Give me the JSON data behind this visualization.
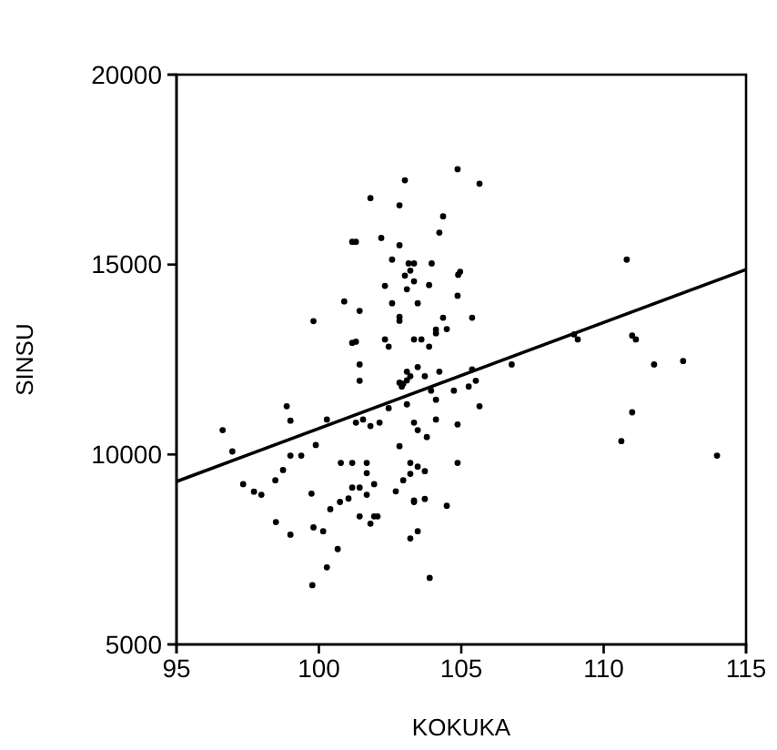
{
  "chart_data": {
    "type": "scatter",
    "xlabel": "KOKUKA",
    "ylabel": "SINSU",
    "xlim": [
      95,
      115
    ],
    "ylim": [
      5000,
      20000
    ],
    "xticks": [
      95,
      100,
      105,
      110,
      115
    ],
    "yticks": [
      5000,
      10000,
      15000,
      20000
    ],
    "grid": false,
    "marker": "circle",
    "series": [
      {
        "color": "#000000",
        "x": [
          104.87,
          103.02,
          105.64,
          101.81,
          102.83,
          104.36,
          104.23,
          101.17,
          101.3,
          102.19,
          102.83,
          102.57,
          103.15,
          103.34,
          103.96,
          104.96,
          104.89,
          103.21,
          103.02,
          103.34,
          103.87,
          102.32,
          103.09,
          104.87,
          100.89,
          102.57,
          103.47,
          101.43,
          102.83,
          102.83,
          99.81,
          104.36,
          105.38,
          104.11,
          104.49,
          104.11,
          101.17,
          101.3,
          102.32,
          102.45,
          103.34,
          103.6,
          103.87,
          101.43,
          101.43,
          103.47,
          103.09,
          103.21,
          103.72,
          104.23,
          102.83,
          102.96,
          103.09,
          102.91,
          103.94,
          104.74,
          105.38,
          105.51,
          105.26,
          106.77,
          108.96,
          109.09,
          111.0,
          111.13,
          110.81,
          111.77,
          112.79,
          111.0,
          110.62,
          113.98,
          104.11,
          103.09,
          102.45,
          105.64,
          98.87,
          99.0,
          100.28,
          101.3,
          101.55,
          101.81,
          102.13,
          103.34,
          103.47,
          104.11,
          104.87,
          103.79,
          96.62,
          96.96,
          99.89,
          99.0,
          99.38,
          98.74,
          98.47,
          97.34,
          97.72,
          97.98,
          99.74,
          98.49,
          99.0,
          99.81,
          100.15,
          100.66,
          100.28,
          99.77,
          103.89,
          100.4,
          100.77,
          101.17,
          101.68,
          101.68,
          101.17,
          101.43,
          101.94,
          101.68,
          101.04,
          100.74,
          101.43,
          101.94,
          102.06,
          101.81,
          102.83,
          102.7,
          102.96,
          103.21,
          103.47,
          103.72,
          103.21,
          103.34,
          103.34,
          103.72,
          103.47,
          103.21,
          104.49,
          104.87
        ],
        "values": [
          17510,
          17220,
          17130,
          16750,
          16560,
          16270,
          15840,
          15600,
          15600,
          15700,
          15510,
          15130,
          15030,
          15030,
          15030,
          14810,
          14730,
          14840,
          14710,
          14560,
          14460,
          14440,
          14350,
          14180,
          14030,
          13980,
          13980,
          13780,
          13620,
          13520,
          13510,
          13600,
          13600,
          13290,
          13300,
          13190,
          12940,
          12970,
          13030,
          12840,
          13030,
          13030,
          12840,
          12370,
          11940,
          12300,
          12180,
          12060,
          12060,
          12180,
          11890,
          11860,
          11950,
          11790,
          11680,
          11680,
          12240,
          11940,
          11790,
          12370,
          13160,
          13030,
          13130,
          13030,
          15130,
          12370,
          12460,
          11110,
          10350,
          9970,
          11440,
          11320,
          11220,
          11270,
          11270,
          10890,
          10920,
          10840,
          10920,
          10750,
          10840,
          10840,
          10640,
          10920,
          10790,
          10460,
          10640,
          10080,
          10250,
          9970,
          9970,
          9590,
          9320,
          9220,
          9020,
          8940,
          8970,
          8220,
          7890,
          8080,
          7980,
          7510,
          7030,
          6560,
          6750,
          8560,
          9780,
          9780,
          9780,
          9510,
          9130,
          9130,
          9220,
          8940,
          8840,
          8750,
          8370,
          8370,
          8370,
          8180,
          10220,
          9030,
          9320,
          9780,
          9680,
          9560,
          9490,
          8790,
          8750,
          8830,
          7980,
          7790,
          8650,
          9780
        ]
      },
      {
        "type": "line",
        "color": "#000000",
        "marker": "none",
        "line_style": "solid",
        "x": [
          95,
          115
        ],
        "values": [
          9290,
          14870
        ]
      }
    ]
  }
}
